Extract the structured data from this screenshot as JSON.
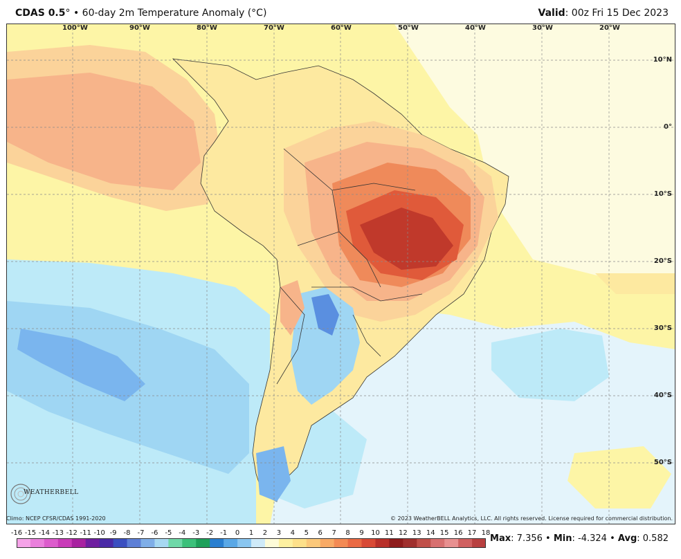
{
  "header": {
    "model": "CDAS 0.5",
    "degree": "°",
    "bullet": "•",
    "title": "60-day 2m Temperature Anomaly (°C)",
    "valid_label": "Valid",
    "valid_value": ": 00z Fri 15 Dec 2023"
  },
  "map": {
    "longitude_labels": [
      "100°W",
      "90°W",
      "80°W",
      "70°W",
      "60°W",
      "50°W",
      "40°W",
      "30°W",
      "20°W"
    ],
    "latitude_labels": [
      "10°N",
      "0°",
      "10°S",
      "20°S",
      "30°S",
      "40°S",
      "50°S"
    ],
    "colors": {
      "ocean_neutral": "#fdfbe0",
      "light_yellow": "#fdf5a6",
      "yellow": "#fde9a0",
      "light_orange": "#fbd39a",
      "orange": "#f7b48a",
      "deep_orange": "#ef8a5a",
      "red": "#e05a3a",
      "dark_red": "#c0392b",
      "light_blue": "#bdeaf8",
      "sky_blue": "#9fd6f3",
      "mid_blue": "#7ab5ee",
      "deep_blue": "#5a8fe0",
      "pale_blue": "#e4f4fb"
    }
  },
  "credits": {
    "left": "Climo: NCEP CFSR/CDAS 1991-2020",
    "right": "© 2023 WeatherBELL Analytics, LLC. All rights reserved. License required for commercial distribution.",
    "logo_text": "WEATHERBELL"
  },
  "colorbar": {
    "labels": [
      "-16",
      "-15",
      "-14",
      "-13",
      "-12",
      "-11",
      "-10",
      "-9",
      "-8",
      "-7",
      "-6",
      "-5",
      "-4",
      "-3",
      "-2",
      "-1",
      "0",
      "1",
      "2",
      "3",
      "4",
      "5",
      "6",
      "7",
      "8",
      "9",
      "10",
      "11",
      "12",
      "13",
      "14",
      "15",
      "16",
      "17",
      "18"
    ],
    "colors": [
      "#f5a3e8",
      "#ea7fdc",
      "#dc5ccc",
      "#c93bb8",
      "#a822a0",
      "#6f1fa0",
      "#4a2aa6",
      "#3b4fc0",
      "#5d7fd6",
      "#7faee8",
      "#a7d8f2",
      "#6fd8a8",
      "#3cc07a",
      "#1ea05a",
      "#2a7fd0",
      "#5aa8e6",
      "#8ac6f0",
      "#cfeaf8",
      "#fdfbd8",
      "#fdf0a0",
      "#fde08a",
      "#fbc87a",
      "#f8aa66",
      "#f38a54",
      "#ea6a44",
      "#d84a36",
      "#b8302a",
      "#8e1c1c",
      "#a0302e",
      "#c0504a",
      "#d87070",
      "#e89090",
      "#d06060",
      "#b84040"
    ]
  },
  "stats": {
    "max_label": "Max",
    "max_value": ": 7.356",
    "min_label": "Min",
    "min_value": ": -4.324",
    "avg_label": "Avg",
    "avg_value": ": 0.582",
    "sep": "•"
  }
}
